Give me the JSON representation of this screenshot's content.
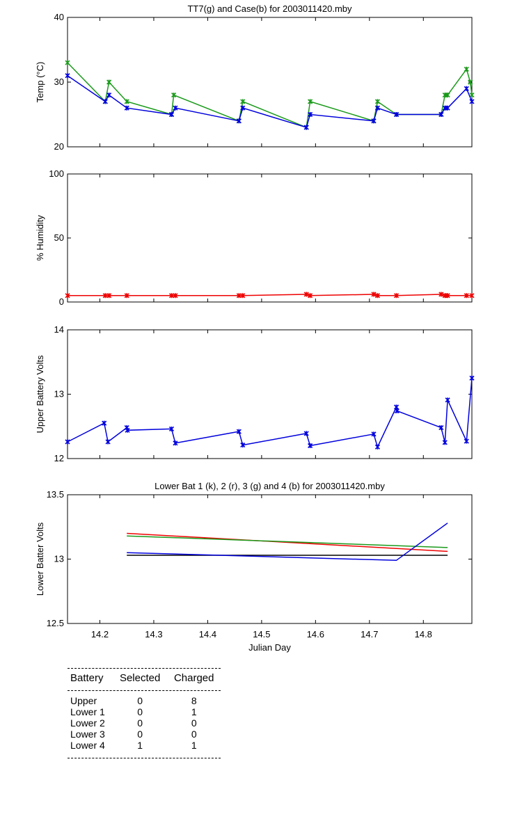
{
  "colors": {
    "green": "#1a9a1a",
    "blue": "#0000dd",
    "red": "#ee0000",
    "black": "#000000"
  },
  "chart_data": [
    {
      "type": "line",
      "title": "TT7(g) and Case(b) for 2003011420.mby",
      "xlabel": "",
      "ylabel": "Temp  (°C)",
      "xlim": [
        14.14,
        14.89
      ],
      "ylim": [
        20,
        40
      ],
      "yticks": [
        20,
        30,
        40
      ],
      "xticks": [
        14.2,
        14.3,
        14.4,
        14.5,
        14.6,
        14.7,
        14.8
      ],
      "show_xtick_labels": false,
      "markers": true,
      "series": [
        {
          "color": "green",
          "x": [
            14.14,
            14.21,
            14.217,
            14.25,
            14.333,
            14.337,
            14.458,
            14.465,
            14.583,
            14.59,
            14.708,
            14.715,
            14.75,
            14.833,
            14.84,
            14.845,
            14.88,
            14.887,
            14.89
          ],
          "y": [
            33,
            27,
            30,
            27,
            25,
            28,
            24,
            27,
            23,
            27,
            24,
            27,
            25,
            25,
            28,
            28,
            32,
            30,
            28
          ]
        },
        {
          "color": "blue",
          "x": [
            14.14,
            14.21,
            14.217,
            14.25,
            14.333,
            14.34,
            14.458,
            14.465,
            14.583,
            14.59,
            14.708,
            14.715,
            14.75,
            14.833,
            14.84,
            14.845,
            14.88,
            14.89
          ],
          "y": [
            31,
            27,
            28,
            26,
            25,
            26,
            24,
            26,
            23,
            25,
            24,
            26,
            25,
            25,
            26,
            26,
            29,
            27
          ]
        }
      ]
    },
    {
      "type": "line",
      "title": "",
      "xlabel": "",
      "ylabel": "% Humidity",
      "xlim": [
        14.14,
        14.89
      ],
      "ylim": [
        0,
        100
      ],
      "yticks": [
        0,
        50,
        100
      ],
      "xticks": [
        14.2,
        14.3,
        14.4,
        14.5,
        14.6,
        14.7,
        14.8
      ],
      "show_xtick_labels": false,
      "markers": true,
      "series": [
        {
          "color": "red",
          "x": [
            14.14,
            14.21,
            14.217,
            14.25,
            14.333,
            14.34,
            14.458,
            14.465,
            14.583,
            14.59,
            14.708,
            14.715,
            14.75,
            14.833,
            14.84,
            14.845,
            14.88,
            14.89
          ],
          "y": [
            5,
            5,
            5,
            5,
            5,
            5,
            5,
            5,
            6,
            5,
            6,
            5,
            5,
            6,
            5,
            5,
            5,
            5
          ]
        }
      ]
    },
    {
      "type": "line",
      "title": "",
      "xlabel": "",
      "ylabel": "Upper Battery Volts",
      "xlim": [
        14.14,
        14.89
      ],
      "ylim": [
        12,
        14
      ],
      "yticks": [
        12,
        13,
        14
      ],
      "xticks": [
        14.2,
        14.3,
        14.4,
        14.5,
        14.6,
        14.7,
        14.8
      ],
      "show_xtick_labels": false,
      "markers": true,
      "series": [
        {
          "color": "blue",
          "x": [
            14.14,
            14.208,
            14.215,
            14.25,
            14.251,
            14.333,
            14.34,
            14.458,
            14.465,
            14.583,
            14.59,
            14.708,
            14.715,
            14.75,
            14.751,
            14.833,
            14.84,
            14.845,
            14.88,
            14.89
          ],
          "y": [
            12.26,
            12.55,
            12.26,
            12.48,
            12.44,
            12.46,
            12.24,
            12.42,
            12.21,
            12.39,
            12.2,
            12.38,
            12.18,
            12.8,
            12.74,
            12.48,
            12.25,
            12.91,
            12.27,
            13.25
          ]
        }
      ]
    },
    {
      "type": "line",
      "title": "Lower Bat 1 (k), 2 (r), 3 (g) and 4 (b) for 2003011420.mby",
      "xlabel": "Julian Day",
      "ylabel": "Lower Batter Volts",
      "xlim": [
        14.14,
        14.89
      ],
      "ylim": [
        12.5,
        13.5
      ],
      "yticks": [
        12.5,
        13,
        13.5
      ],
      "xticks": [
        14.2,
        14.3,
        14.4,
        14.5,
        14.6,
        14.7,
        14.8
      ],
      "show_xtick_labels": true,
      "markers": false,
      "series": [
        {
          "color": "black",
          "x": [
            14.25,
            14.845
          ],
          "y": [
            13.03,
            13.03
          ]
        },
        {
          "color": "red",
          "x": [
            14.25,
            14.845
          ],
          "y": [
            13.2,
            13.06
          ]
        },
        {
          "color": "green",
          "x": [
            14.25,
            14.845
          ],
          "y": [
            13.18,
            13.09
          ]
        },
        {
          "color": "blue",
          "x": [
            14.25,
            14.75,
            14.845
          ],
          "y": [
            13.05,
            12.99,
            13.28
          ]
        }
      ]
    }
  ],
  "battery_table": {
    "headers": [
      "Battery",
      "Selected",
      "Charged"
    ],
    "rows": [
      [
        "Upper",
        "0",
        "8"
      ],
      [
        "Lower 1",
        "0",
        "1"
      ],
      [
        "Lower 2",
        "0",
        "0"
      ],
      [
        "Lower 3",
        "0",
        "0"
      ],
      [
        "Lower 4",
        "1",
        "1"
      ]
    ]
  }
}
